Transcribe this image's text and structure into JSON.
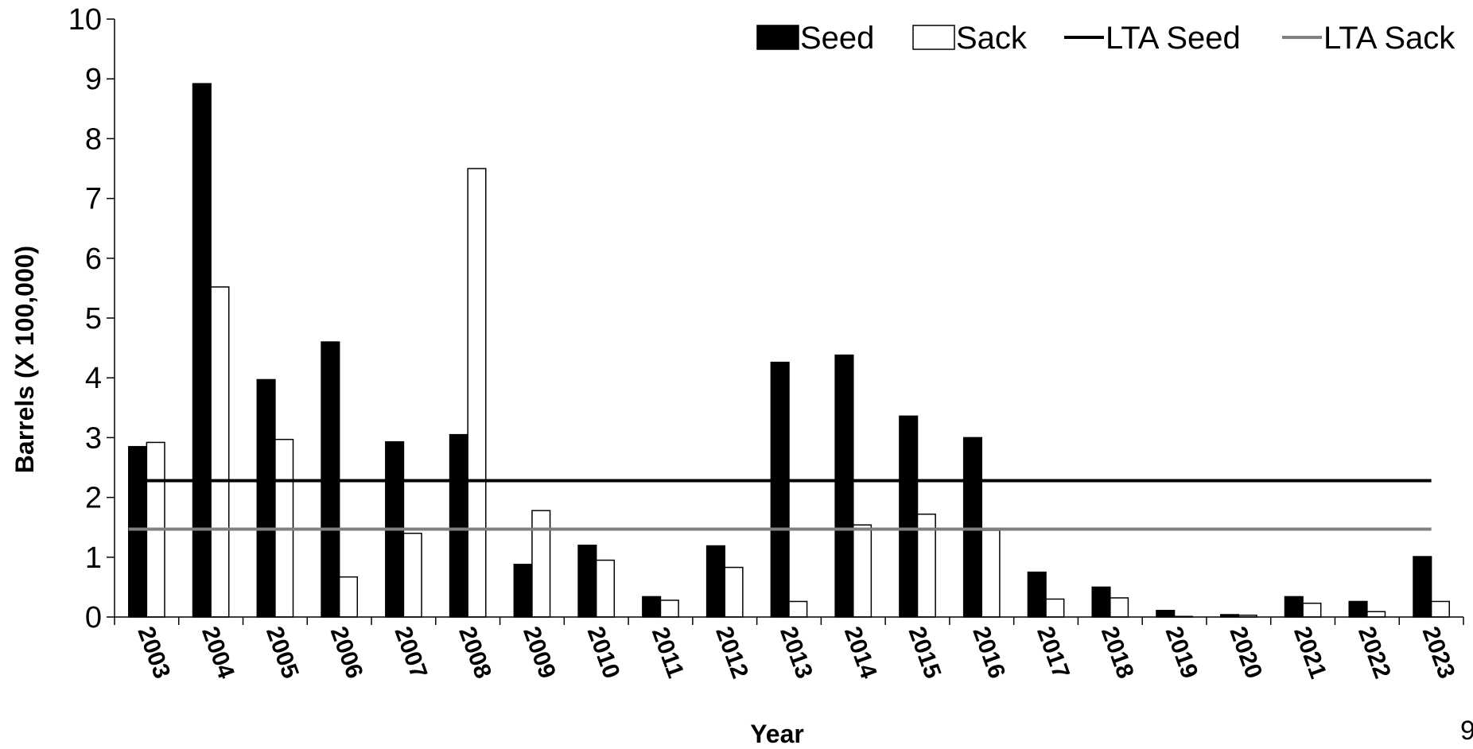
{
  "chart_data": {
    "type": "bar",
    "title": "",
    "xlabel": "Year",
    "ylabel": "Barrels (X 100,000)",
    "ylim": [
      0,
      10
    ],
    "yticks": [
      0,
      1,
      2,
      3,
      4,
      5,
      6,
      7,
      8,
      9,
      10
    ],
    "grid": false,
    "legend_position": "top-right",
    "categories": [
      "2003",
      "2004",
      "2005",
      "2006",
      "2007",
      "2008",
      "2009",
      "2010",
      "2011",
      "2012",
      "2013",
      "2014",
      "2015",
      "2016",
      "2017",
      "2018",
      "2019",
      "2020",
      "2021",
      "2022",
      "2023"
    ],
    "series": [
      {
        "name": "Seed",
        "type": "bar",
        "fill": "#000000",
        "values": [
          2.85,
          8.92,
          3.97,
          4.6,
          2.93,
          3.05,
          0.88,
          1.2,
          0.34,
          1.19,
          4.26,
          4.38,
          3.36,
          3.0,
          0.75,
          0.5,
          0.11,
          0.04,
          0.34,
          0.26,
          1.01
        ]
      },
      {
        "name": "Sack",
        "type": "bar",
        "fill": "#ffffff",
        "values": [
          2.92,
          5.52,
          2.97,
          0.67,
          1.4,
          7.5,
          1.78,
          0.95,
          0.28,
          0.83,
          0.26,
          1.54,
          1.72,
          1.45,
          0.3,
          0.32,
          0.01,
          0.03,
          0.23,
          0.09,
          0.26
        ]
      },
      {
        "name": "LTA Seed",
        "type": "line",
        "color": "#000000",
        "value": 2.28
      },
      {
        "name": "LTA Sack",
        "type": "line",
        "color": "#808080",
        "value": 1.47
      }
    ]
  },
  "page_number": "9"
}
